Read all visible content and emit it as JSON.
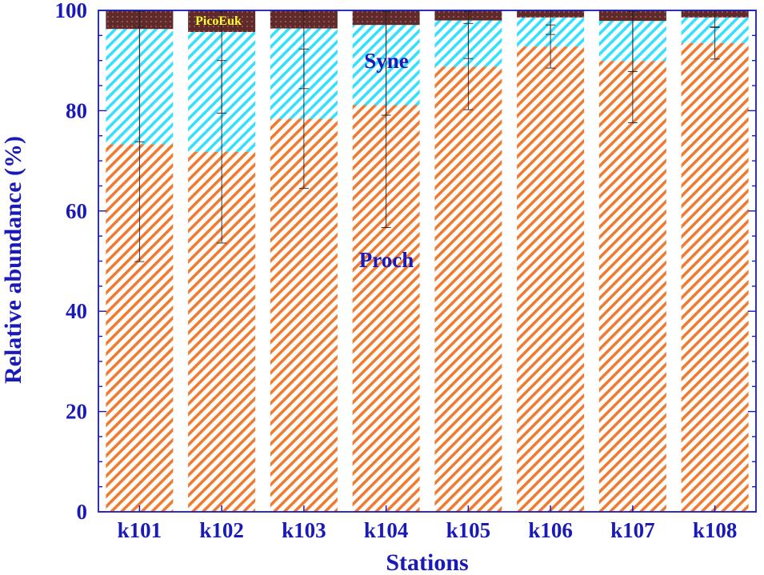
{
  "chart_data": {
    "type": "bar",
    "stacked": true,
    "categories": [
      "k101",
      "k102",
      "k103",
      "k104",
      "k105",
      "k106",
      "k107",
      "k108"
    ],
    "series": [
      {
        "name": "Proch",
        "values": [
          73.3,
          71.8,
          78.4,
          81.1,
          88.8,
          92.8,
          89.9,
          93.5
        ],
        "error": [
          23.4,
          18.2,
          13.9,
          24.4,
          8.6,
          4.3,
          12.3,
          3.2
        ],
        "color": "#f07a30"
      },
      {
        "name": "Syne",
        "values": [
          23.0,
          23.9,
          18.0,
          16.0,
          9.2,
          5.8,
          8.0,
          5.1
        ],
        "error": [
          22.5,
          16.2,
          12.0,
          18.0,
          7.6,
          3.4,
          10.1,
          2.0
        ],
        "color": "#33e0ff"
      },
      {
        "name": "PicoEuk",
        "values": [
          3.7,
          4.3,
          3.6,
          2.9,
          2.0,
          1.4,
          2.1,
          1.4
        ],
        "error": [
          0.2,
          0.3,
          0.2,
          0.2,
          0.2,
          0.1,
          0.2,
          0.1
        ],
        "color": "#6b2f2f"
      }
    ],
    "xlabel": "Stations",
    "ylabel": "Relative abundance (%)",
    "ylim": [
      0,
      100
    ],
    "yticks": [
      0,
      20,
      40,
      60,
      80,
      100
    ],
    "grid": false,
    "legend": "none",
    "axis_color": "#1a1ab8",
    "label_color": "#1a1ab8",
    "picoeuk_label_color": "#ffff33"
  }
}
